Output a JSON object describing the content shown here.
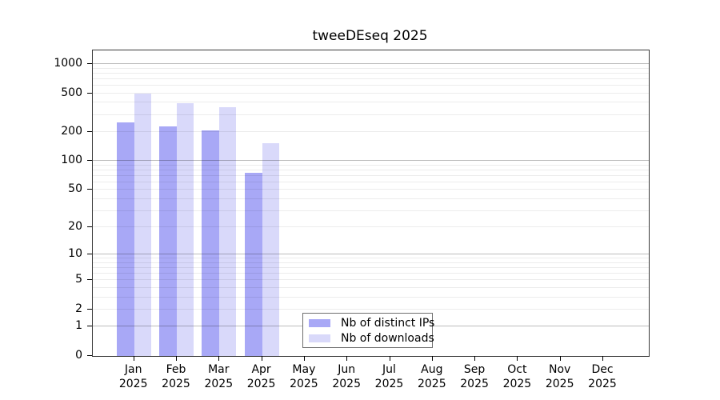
{
  "title": "tweeDEseq 2025",
  "chart_data": {
    "type": "bar",
    "title": "tweeDEseq 2025",
    "scale": "log1p",
    "categories": [
      "Jan",
      "Feb",
      "Mar",
      "Apr",
      "May",
      "Jun",
      "Jul",
      "Aug",
      "Sep",
      "Oct",
      "Nov",
      "Dec"
    ],
    "year_label": "2025",
    "series": [
      {
        "name": "Nb of distinct IPs",
        "color": "#a8a8f6",
        "values": [
          252,
          229,
          208,
          76,
          0,
          0,
          0,
          0,
          0,
          0,
          0,
          0
        ]
      },
      {
        "name": "Nb of downloads",
        "color": "#d9d9fa",
        "values": [
          500,
          398,
          362,
          152,
          0,
          0,
          0,
          0,
          0,
          0,
          0,
          0
        ]
      }
    ],
    "y_ticks": [
      0,
      1,
      2,
      5,
      10,
      20,
      50,
      100,
      200,
      500,
      1000
    ],
    "ylim": [
      0,
      1000
    ],
    "xlabel": "",
    "ylabel": "",
    "grid": "horizontal log minor+major",
    "legend_position": "bottom-center"
  }
}
